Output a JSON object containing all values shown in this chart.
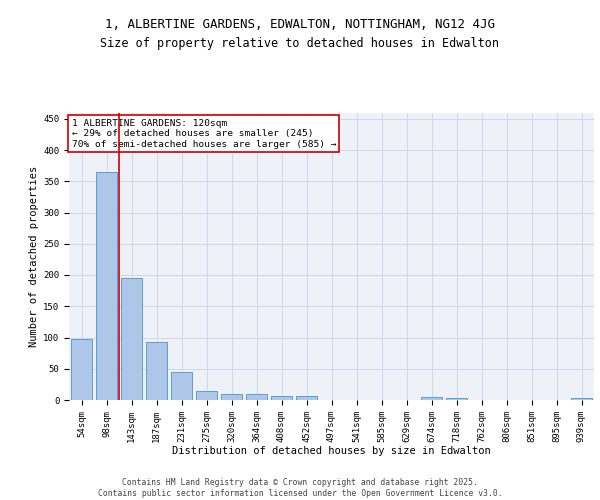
{
  "title_line1": "1, ALBERTINE GARDENS, EDWALTON, NOTTINGHAM, NG12 4JG",
  "title_line2": "Size of property relative to detached houses in Edwalton",
  "xlabel": "Distribution of detached houses by size in Edwalton",
  "ylabel": "Number of detached properties",
  "categories": [
    "54sqm",
    "98sqm",
    "143sqm",
    "187sqm",
    "231sqm",
    "275sqm",
    "320sqm",
    "364sqm",
    "408sqm",
    "452sqm",
    "497sqm",
    "541sqm",
    "585sqm",
    "629sqm",
    "674sqm",
    "718sqm",
    "762sqm",
    "806sqm",
    "851sqm",
    "895sqm",
    "939sqm"
  ],
  "values": [
    98,
    365,
    196,
    93,
    45,
    14,
    10,
    10,
    6,
    6,
    0,
    0,
    0,
    0,
    5,
    4,
    0,
    0,
    0,
    0,
    3
  ],
  "bar_color": "#aec6e8",
  "bar_edge_color": "#5a9fd4",
  "grid_color": "#d0d8e8",
  "background_color": "#eef2f8",
  "vline_x": 1.5,
  "vline_color": "#cc0000",
  "annotation_text": "1 ALBERTINE GARDENS: 120sqm\n← 29% of detached houses are smaller (245)\n70% of semi-detached houses are larger (585) →",
  "annotation_box_color": "#cc0000",
  "ylim": [
    0,
    460
  ],
  "yticks": [
    0,
    50,
    100,
    150,
    200,
    250,
    300,
    350,
    400,
    450
  ],
  "footer_text": "Contains HM Land Registry data © Crown copyright and database right 2025.\nContains public sector information licensed under the Open Government Licence v3.0.",
  "title_fontsize": 9,
  "subtitle_fontsize": 8.5,
  "tick_fontsize": 6.5,
  "label_fontsize": 7.5,
  "annotation_fontsize": 6.8,
  "footer_fontsize": 5.8
}
